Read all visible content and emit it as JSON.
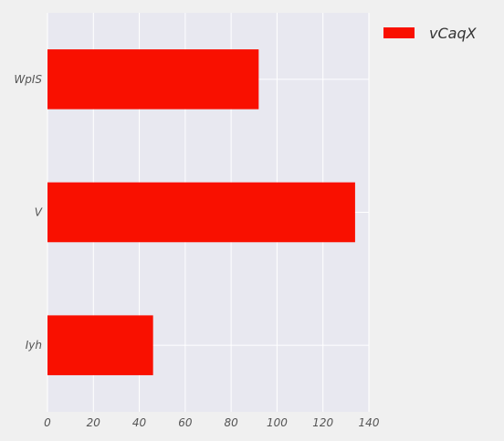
{
  "chart_data": {
    "type": "bar",
    "orientation": "horizontal",
    "categories": [
      "WpIS",
      "V",
      "Iyh"
    ],
    "series": [
      {
        "name": "vCaqX",
        "values": [
          92,
          134,
          46
        ],
        "color": "#f91000"
      }
    ],
    "xlim": [
      0,
      140
    ],
    "xticks": [
      "0",
      "20",
      "40",
      "60",
      "80",
      "100",
      "120",
      "140"
    ],
    "grid": true,
    "legend_position": "right"
  },
  "style": {
    "plot_background": "#e8e8f0",
    "page_background": "#f0f0f0",
    "grid_color": "#ffffff"
  }
}
